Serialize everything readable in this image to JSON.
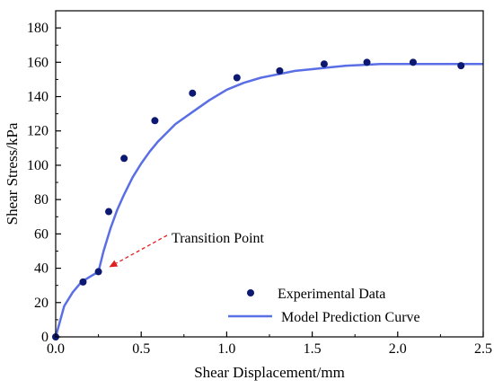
{
  "chart_data": {
    "type": "scatter",
    "title": "",
    "xlabel": "Shear Displacement/mm",
    "ylabel": "Shear Stress/kPa",
    "xlim": [
      0,
      2.5
    ],
    "ylim": [
      0,
      190
    ],
    "xticks": [
      "0.0",
      "0.5",
      "1.0",
      "1.5",
      "2.0",
      "2.5"
    ],
    "yticks": [
      "0",
      "20",
      "40",
      "60",
      "80",
      "100",
      "120",
      "140",
      "160",
      "180"
    ],
    "grid": false,
    "legend_position": "bottom-right",
    "series": [
      {
        "name": "Experimental Data",
        "kind": "scatter",
        "color": "#0d1870",
        "x": [
          0.0,
          0.16,
          0.25,
          0.31,
          0.4,
          0.58,
          0.8,
          1.06,
          1.31,
          1.57,
          1.82,
          2.09,
          2.37
        ],
        "y": [
          0,
          32,
          38,
          73,
          104,
          126,
          142,
          151,
          155,
          159,
          160,
          160,
          158
        ]
      },
      {
        "name": "Model Prediction Curve",
        "kind": "line",
        "color": "#5a6ee6",
        "x": [
          0.0,
          0.05,
          0.1,
          0.15,
          0.2,
          0.25,
          0.28,
          0.32,
          0.36,
          0.4,
          0.45,
          0.5,
          0.55,
          0.6,
          0.7,
          0.8,
          0.9,
          1.0,
          1.1,
          1.2,
          1.3,
          1.4,
          1.5,
          1.6,
          1.7,
          1.8,
          1.9,
          2.0,
          2.1,
          2.2,
          2.3,
          2.4,
          2.5
        ],
        "y": [
          0,
          18,
          26,
          32,
          35,
          38,
          50,
          63,
          74,
          83,
          93,
          101,
          108,
          114,
          124,
          131,
          138,
          144,
          148,
          151,
          153,
          155,
          156,
          157,
          158,
          158.5,
          159,
          159,
          159,
          159,
          159,
          159,
          159
        ]
      }
    ],
    "annotations": [
      {
        "text": "Transition Point",
        "x": 0.27,
        "y": 38,
        "color": "#e02020"
      }
    ]
  }
}
